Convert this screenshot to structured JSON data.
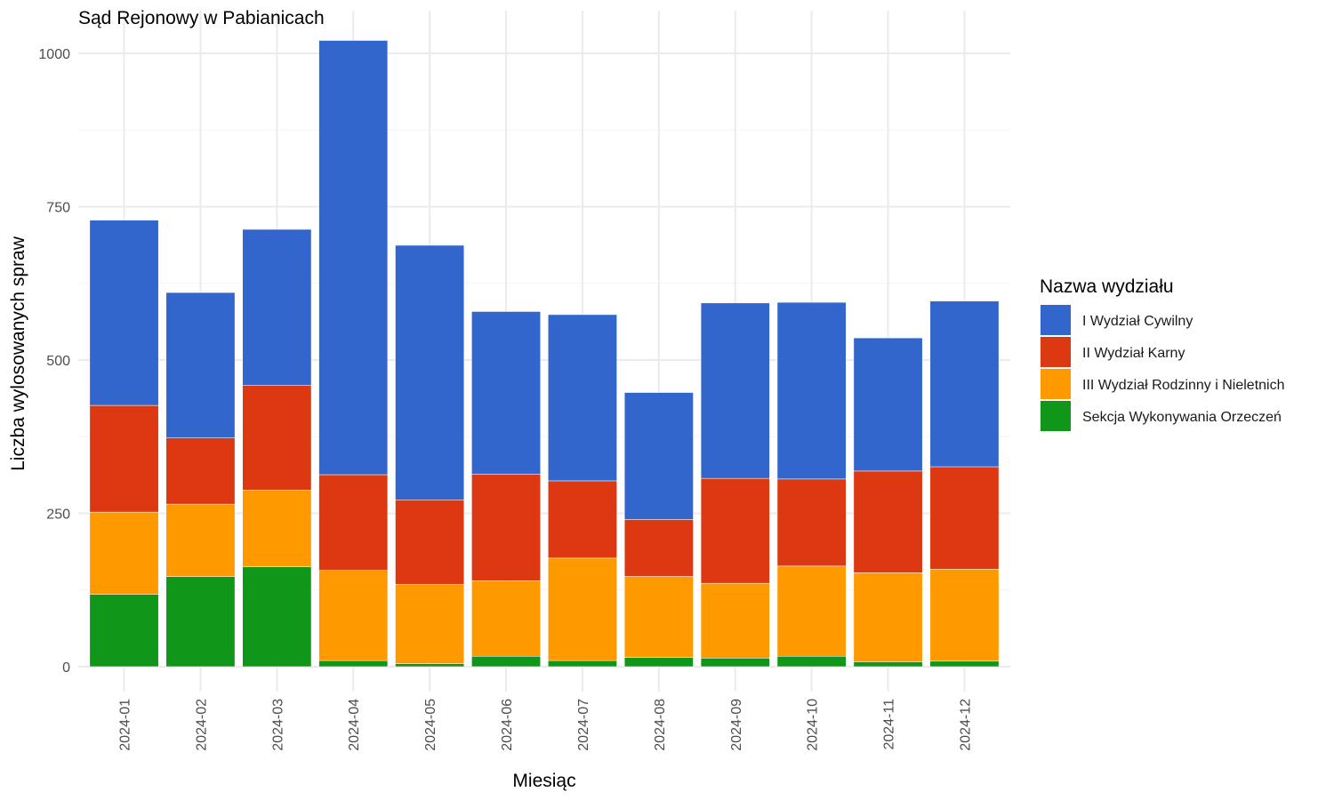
{
  "chart_data": {
    "type": "bar",
    "stacked": true,
    "title": "Sąd Rejonowy w Pabianicach",
    "xlabel": "Miesiąc",
    "ylabel": "Liczba wylosowanych spraw",
    "ylim": [
      -40,
      1040
    ],
    "yticks": [
      0,
      250,
      500,
      750,
      1000
    ],
    "grid": true,
    "legend_title": "Nazwa wydziału",
    "legend_position": "right",
    "categories": [
      "2024-01",
      "2024-02",
      "2024-03",
      "2024-04",
      "2024-05",
      "2024-06",
      "2024-07",
      "2024-08",
      "2024-09",
      "2024-10",
      "2024-11",
      "2024-12"
    ],
    "series": [
      {
        "name": "Sekcja Wykonywania Orzeczeń",
        "color": "#109618",
        "values": [
          118,
          147,
          163,
          10,
          5,
          17,
          10,
          15,
          14,
          17,
          8,
          9
        ]
      },
      {
        "name": "III Wydział Rodzinny i Nieletnich",
        "color": "#FF9900",
        "values": [
          134,
          118,
          125,
          147,
          129,
          123,
          167,
          132,
          122,
          147,
          145,
          150
        ]
      },
      {
        "name": "II Wydział Karny",
        "color": "#DC3912",
        "values": [
          174,
          108,
          171,
          156,
          138,
          174,
          126,
          93,
          171,
          142,
          166,
          167
        ]
      },
      {
        "name": "I Wydział Cywilny",
        "color": "#3366CC",
        "values": [
          302,
          237,
          254,
          708,
          415,
          265,
          271,
          207,
          286,
          288,
          217,
          270
        ]
      }
    ],
    "legend_order": [
      "I Wydział Cywilny",
      "II Wydział Karny",
      "III Wydział Rodzinny i Nieletnich",
      "Sekcja Wykonywania Orzeczeń"
    ]
  }
}
